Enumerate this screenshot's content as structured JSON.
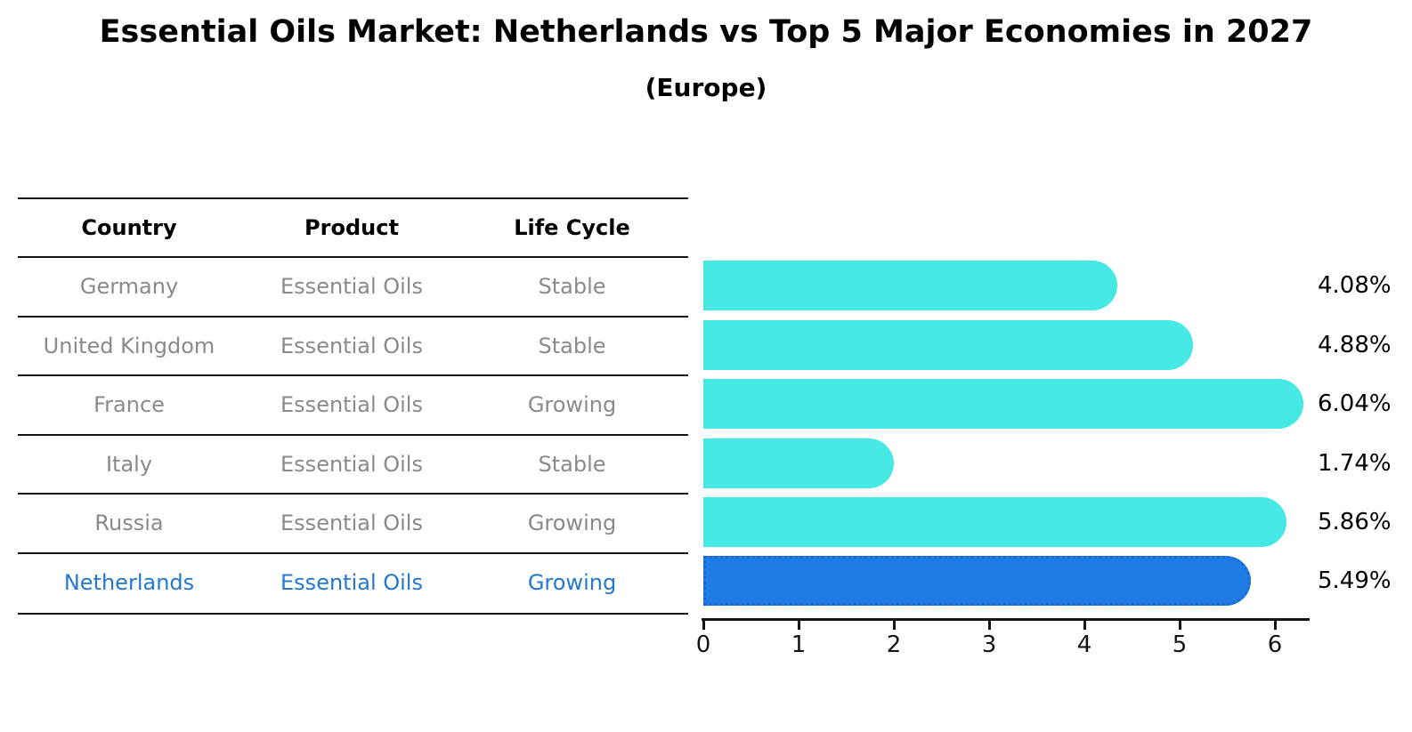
{
  "title": "Essential Oils Market: Netherlands vs Top 5 Major Economies in 2027",
  "subtitle": "(Europe)",
  "table": {
    "headers": {
      "country": "Country",
      "product": "Product",
      "life_cycle": "Life Cycle"
    },
    "rows": [
      {
        "country": "Germany",
        "product": "Essential Oils",
        "life_cycle": "Stable",
        "highlight": false
      },
      {
        "country": "United Kingdom",
        "product": "Essential Oils",
        "life_cycle": "Stable",
        "highlight": false
      },
      {
        "country": "France",
        "product": "Essential Oils",
        "life_cycle": "Growing",
        "highlight": false
      },
      {
        "country": "Italy",
        "product": "Essential Oils",
        "life_cycle": "Stable",
        "highlight": false
      },
      {
        "country": "Russia",
        "product": "Essential Oils",
        "life_cycle": "Growing",
        "highlight": false
      },
      {
        "country": "Netherlands",
        "product": "Essential Oils",
        "life_cycle": "Growing",
        "highlight": true
      }
    ]
  },
  "chart_data": {
    "type": "bar",
    "orientation": "horizontal",
    "categories": [
      "Germany",
      "United Kingdom",
      "France",
      "Italy",
      "Russia",
      "Netherlands"
    ],
    "values": [
      4.08,
      4.88,
      6.04,
      1.74,
      5.86,
      5.49
    ],
    "value_labels": [
      "4.08%",
      "4.88%",
      "6.04%",
      "1.74%",
      "5.86%",
      "5.49%"
    ],
    "highlight_index": 5,
    "x_ticks": [
      0,
      1,
      2,
      3,
      4,
      5,
      6
    ],
    "xlim": [
      0,
      6.35
    ],
    "grid": false,
    "legend": null
  },
  "colors": {
    "bar": "#45e8e3",
    "highlight_bar": "#1f7be5",
    "highlight_border": "#1a6ad0",
    "highlight_text": "#2478cd",
    "row_text": "#8a8a8a",
    "axis": "#141414"
  }
}
